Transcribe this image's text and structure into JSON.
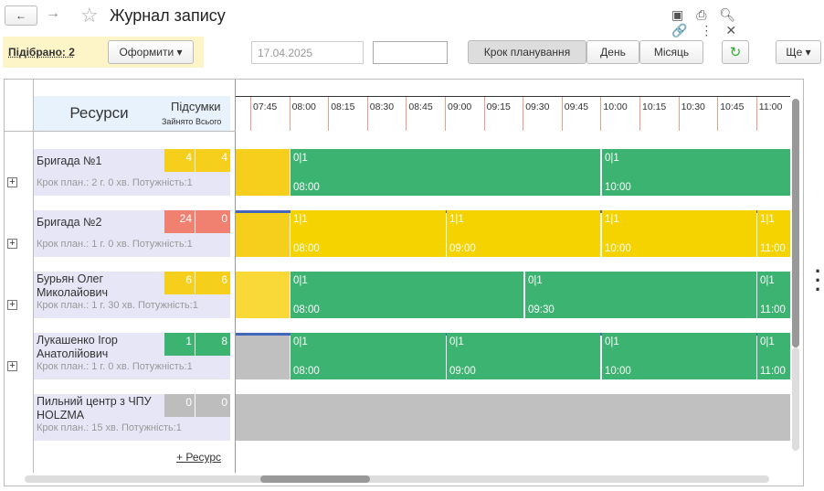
{
  "header": {
    "title": "Журнал запису"
  },
  "toolbar": {
    "selected": "Підібрано: 2",
    "process": "Оформити",
    "date": "17.04.2025",
    "step": "Крок планування",
    "day": "День",
    "month": "Місяць",
    "more": "Ще"
  },
  "table": {
    "resources": "Ресурси",
    "totals": "Підсумки",
    "busy": "Зайнято",
    "total": "Всього",
    "add": "+ Ресурс"
  },
  "times": [
    "07:45",
    "08:00",
    "08:15",
    "08:30",
    "08:45",
    "09:00",
    "09:15",
    "09:30",
    "09:45",
    "10:00",
    "10:15",
    "10:30",
    "10:45",
    "11:00"
  ],
  "rows": [
    {
      "name": "Бригада №1",
      "info": "Крок план.: 2 г. 0 хв. Потужність:1",
      "busy": 4,
      "total": 4,
      "blocks": [
        {
          "label": "0|1",
          "time": "08:00"
        },
        {
          "label": "0|1",
          "time": "10:00"
        }
      ]
    },
    {
      "name": "Бригада №2",
      "info": "Крок план.: 1 г. 0 хв. Потужність:1",
      "busy": 24,
      "total": 0,
      "blocks": [
        {
          "label": "1|1",
          "time": "08:00"
        },
        {
          "label": "1|1",
          "time": "09:00"
        },
        {
          "label": "1|1",
          "time": "10:00"
        },
        {
          "label": "1|1",
          "time": "11:00"
        }
      ]
    },
    {
      "name": "Бурьян Олег Миколайович",
      "info": "Крок план.: 1 г. 30 хв. Потужність:1",
      "busy": 6,
      "total": 6,
      "blocks": [
        {
          "label": "0|1",
          "time": "08:00"
        },
        {
          "label": "0|1",
          "time": "09:30"
        },
        {
          "label": "0|1",
          "time": "11:00"
        }
      ]
    },
    {
      "name": "Лукашенко Ігор Анатолійович",
      "info": "Крок план.: 1 г. 0 хв. Потужність:1",
      "busy": 1,
      "total": 8,
      "blocks": [
        {
          "label": "0|1",
          "time": "08:00"
        },
        {
          "label": "0|1",
          "time": "09:00"
        },
        {
          "label": "0|1",
          "time": "10:00"
        },
        {
          "label": "0|1",
          "time": "11:00"
        }
      ]
    },
    {
      "name": "Пильний центр з ЧПУ HOLZMA",
      "info": "Крок план.: 15 хв. Потужність:1",
      "busy": 0,
      "total": 0,
      "blocks": []
    }
  ]
}
